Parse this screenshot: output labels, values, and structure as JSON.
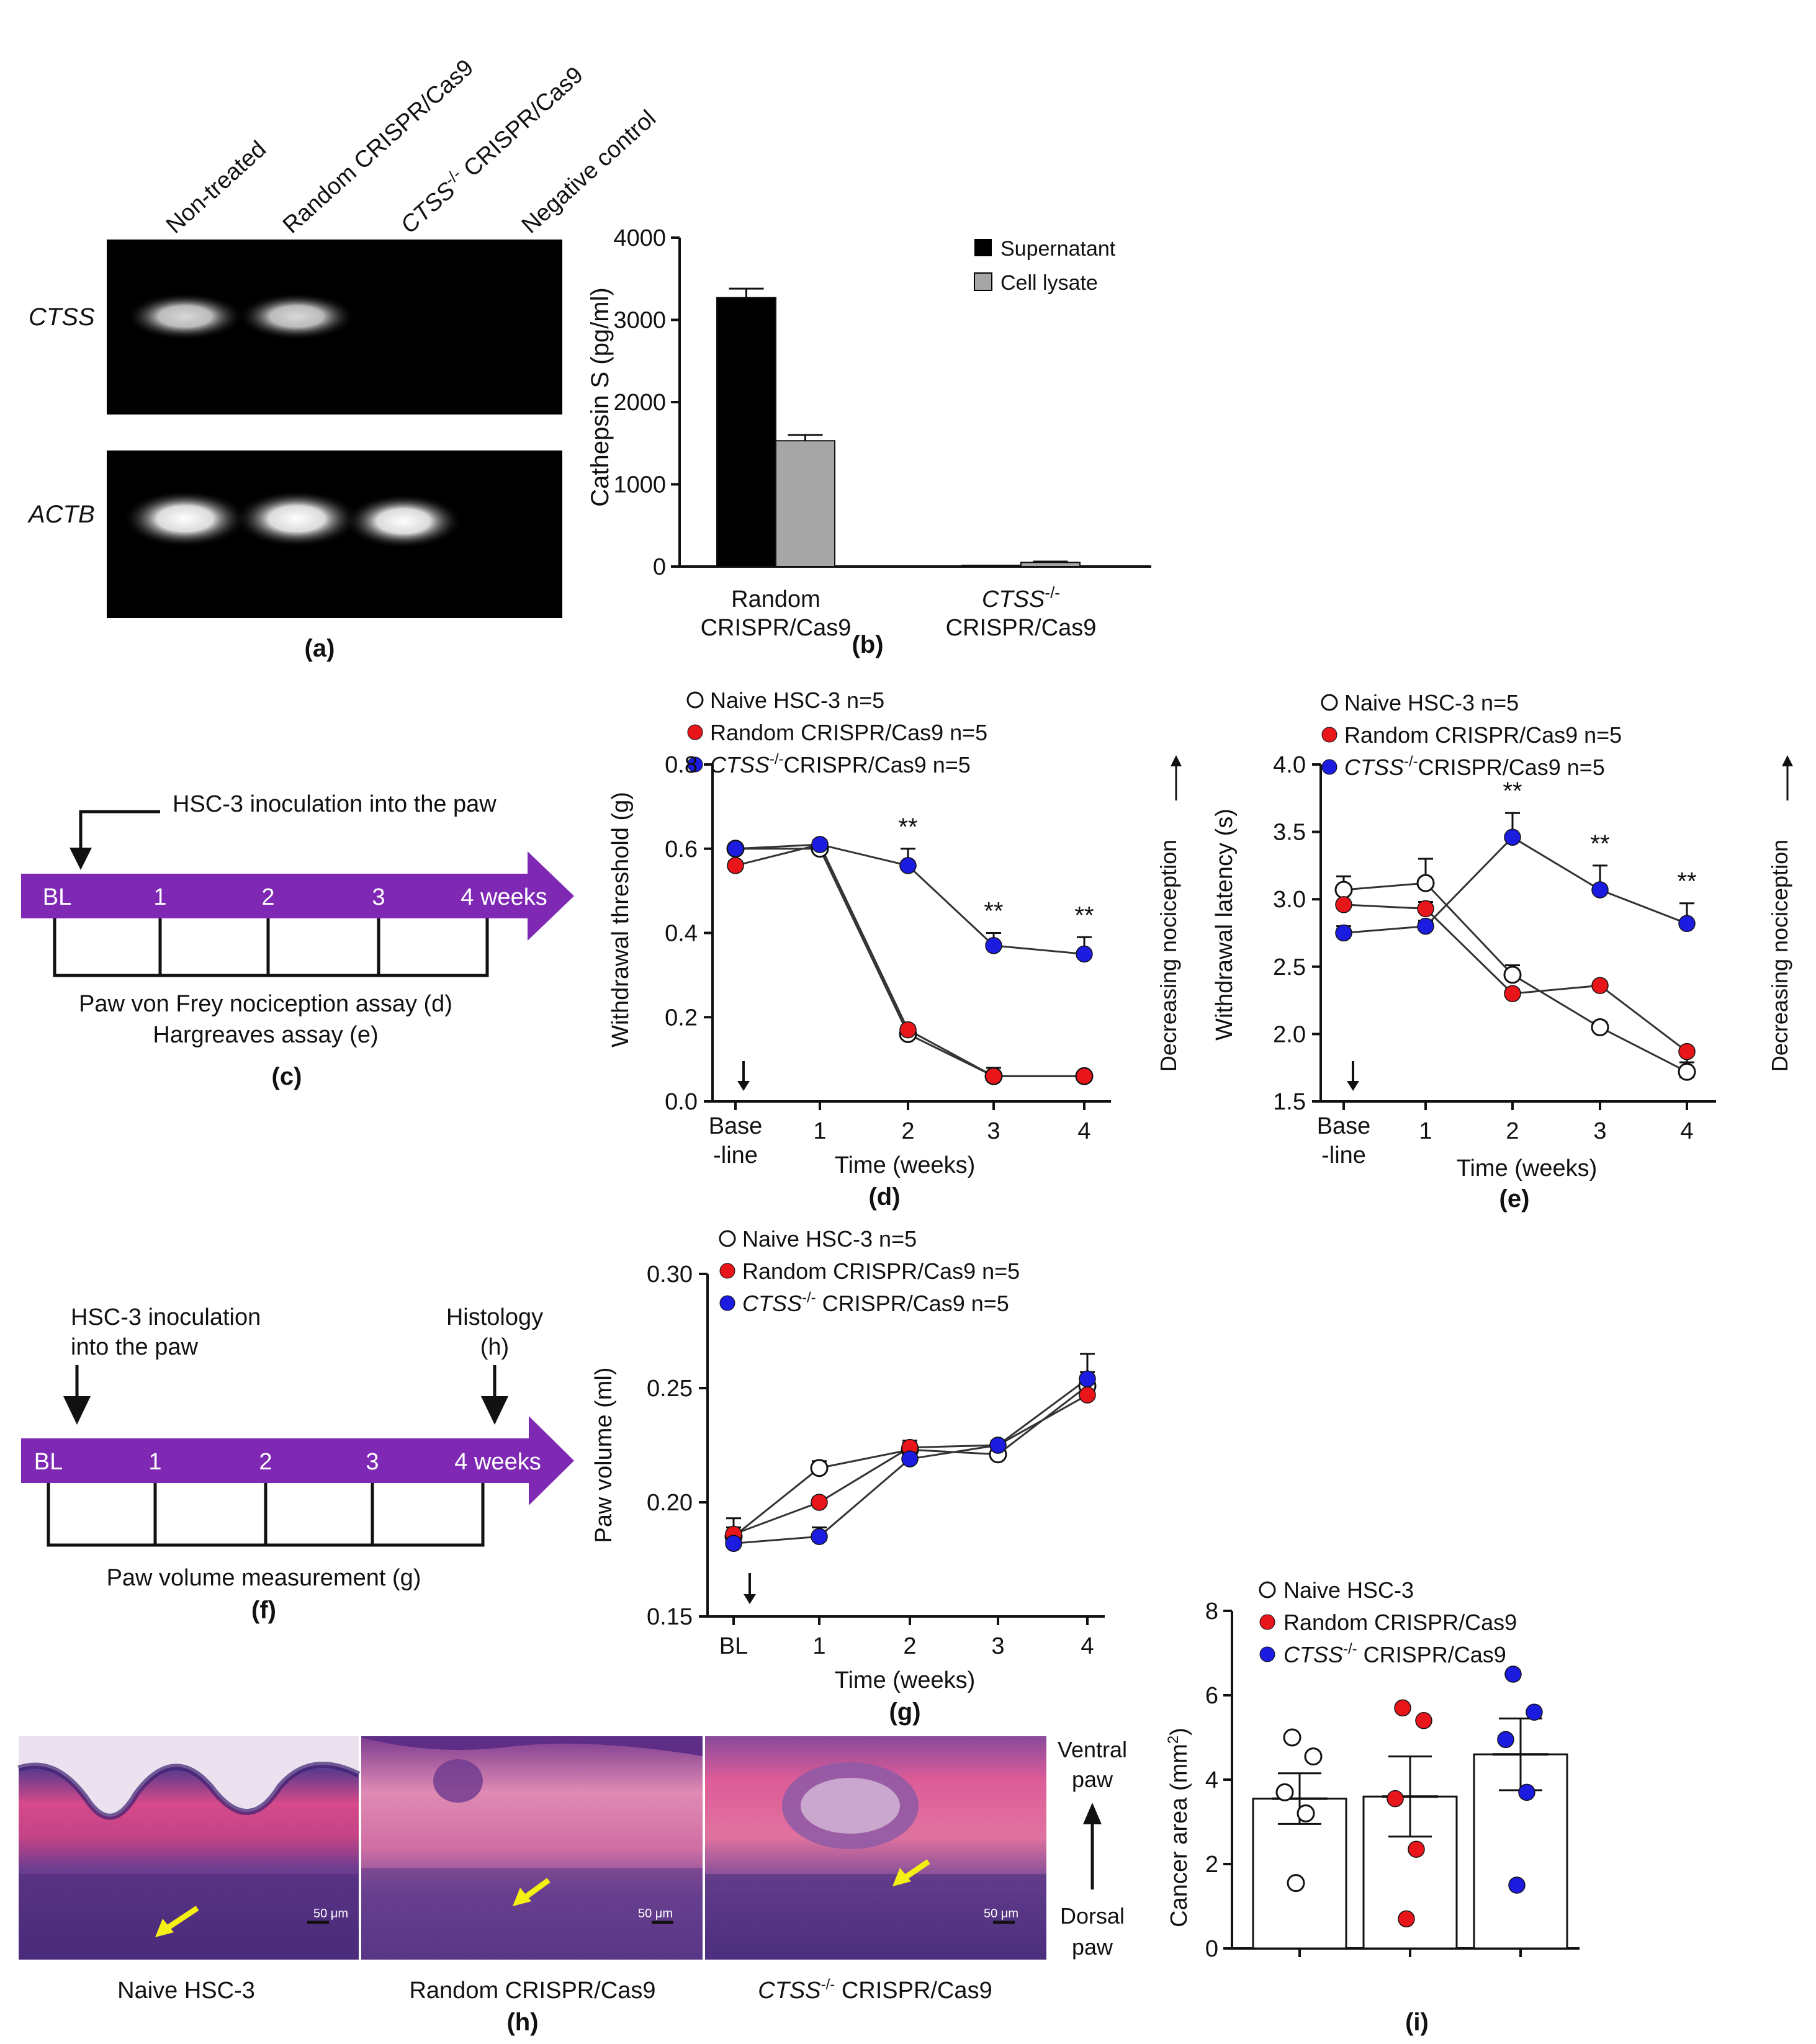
{
  "panel_a": {
    "label": "(a)",
    "lanes": [
      "Non-treated",
      "Random CRISPR/Cas9",
      "CTSS",
      "-/-",
      " CRISPR/Cas9",
      "Negative control"
    ],
    "genes": [
      "CTSS",
      "ACTB"
    ],
    "colors": {
      "gel": "#000000",
      "band": "#ffffff"
    }
  },
  "panel_b": {
    "label": "(b)",
    "ylabel": "Cathepsin S (pg/ml)",
    "legend": [
      "Supernatant",
      "Cell lysate"
    ],
    "group1": [
      "Random",
      "CRISPR/Cas9"
    ],
    "group2": [
      "CTSS",
      "-/-",
      "CRISPR/Cas9"
    ],
    "colors": {
      "supernatant": "#000000",
      "lysate": "#a6a6a6"
    }
  },
  "panel_c": {
    "label": "(c)",
    "inoculation": "HSC-3 inoculation into the paw",
    "timeline": [
      "BL",
      "1",
      "2",
      "3",
      "4 weeks"
    ],
    "assay1": "Paw von Frey nociception assay (d)",
    "assay2": "Hargreaves assay (e)",
    "colors": {
      "arrow": "#7f28b4"
    }
  },
  "panel_d": {
    "label": "(d)",
    "legend": [
      "Naive HSC-3 n=5",
      "Random CRISPR/Cas9 n=5",
      "CTSS",
      "-/-",
      "CRISPR/Cas9 n=5"
    ],
    "ylabel": "Withdrawal threshold (g)",
    "xlabel": "Time (weeks)",
    "xticks": [
      "Base",
      "-line",
      "1",
      "2",
      "3",
      "4"
    ],
    "stars": "**",
    "side": "Decreasing nociception"
  },
  "panel_e": {
    "label": "(e)",
    "legend": [
      "Naive HSC-3 n=5",
      "Random CRISPR/Cas9 n=5",
      "CTSS",
      "-/-",
      "CRISPR/Cas9 n=5"
    ],
    "ylabel": "Withdrawal latency (s)",
    "xlabel": "Time (weeks)",
    "xticks": [
      "Base",
      "-line",
      "1",
      "2",
      "3",
      "4"
    ],
    "stars": "**",
    "side": "Decreasing nociception"
  },
  "panel_f": {
    "label": "(f)",
    "inoculation": [
      "HSC-3 inoculation",
      "into the paw"
    ],
    "histology": [
      "Histology",
      "(h)"
    ],
    "timeline": [
      "BL",
      "1",
      "2",
      "3",
      "4 weeks"
    ],
    "measure": "Paw volume measurement (g)"
  },
  "panel_g": {
    "label": "(g)",
    "legend": [
      "Naive HSC-3 n=5",
      "Random CRISPR/Cas9 n=5",
      "CTSS",
      "-/-",
      " CRISPR/Cas9 n=5"
    ],
    "ylabel": "Paw volume (ml)",
    "xlabel": "Time (weeks)",
    "xticks": [
      "BL",
      "1",
      "2",
      "3",
      "4"
    ]
  },
  "panel_h": {
    "label": "(h)",
    "captions": [
      "Naive HSC-3",
      "Random CRISPR/Cas9",
      "CTSS",
      "-/-",
      " CRISPR/Cas9"
    ],
    "scale": "50 μm",
    "ventral": [
      "Ventral",
      "paw"
    ],
    "dorsal": [
      "Dorsal",
      "paw"
    ]
  },
  "panel_i": {
    "label": "(i)",
    "legend": [
      "Naive HSC-3",
      "Random CRISPR/Cas9",
      "CTSS",
      "-/-",
      " CRISPR/Cas9"
    ],
    "ylabel": "Cancer area (mm",
    "ylabel_sup": "2",
    "ylabel_end": ")"
  },
  "colors": {
    "naive": "#ffffff",
    "random": "#e8151b",
    "ctss": "#1c1ce0",
    "purple": "#7f28b4"
  },
  "chart_data": [
    {
      "id": "b",
      "type": "bar",
      "title": "",
      "categories": [
        "Random CRISPR/Cas9",
        "CTSS-/- CRISPR/Cas9"
      ],
      "series": [
        {
          "name": "Supernatant",
          "values": [
            3270,
            5
          ],
          "errors": [
            110,
            3
          ]
        },
        {
          "name": "Cell lysate",
          "values": [
            1530,
            50
          ],
          "errors": [
            70,
            10
          ]
        }
      ],
      "ylabel": "Cathepsin S (pg/ml)",
      "ylim": [
        0,
        4000
      ],
      "yticks": [
        0,
        1000,
        2000,
        3000,
        4000
      ]
    },
    {
      "id": "d",
      "type": "line",
      "title": "",
      "x": [
        "Base-line",
        "1",
        "2",
        "3",
        "4"
      ],
      "series": [
        {
          "name": "Naive HSC-3 n=5",
          "values": [
            0.6,
            0.6,
            0.16,
            0.06,
            0.06
          ],
          "errors": [
            0.01,
            0.01,
            0.01,
            0.02,
            0.01
          ]
        },
        {
          "name": "Random CRISPR/Cas9 n=5",
          "values": [
            0.56,
            0.61,
            0.17,
            0.06,
            0.06
          ],
          "errors": [
            0.01,
            0.01,
            0.01,
            0.01,
            0.01
          ]
        },
        {
          "name": "CTSS-/- CRISPR/Cas9 n=5",
          "values": [
            0.6,
            0.61,
            0.56,
            0.37,
            0.35
          ],
          "errors": [
            0.01,
            0.01,
            0.04,
            0.03,
            0.04
          ]
        }
      ],
      "significance": [
        {
          "x": "2",
          "label": "**"
        },
        {
          "x": "3",
          "label": "**"
        },
        {
          "x": "4",
          "label": "**"
        }
      ],
      "xlabel": "Time (weeks)",
      "ylabel": "Withdrawal threshold (g)",
      "ylim": [
        0,
        0.8
      ],
      "yticks": [
        0.0,
        0.2,
        0.4,
        0.6,
        0.8
      ]
    },
    {
      "id": "e",
      "type": "line",
      "title": "",
      "x": [
        "Base-line",
        "1",
        "2",
        "3",
        "4"
      ],
      "series": [
        {
          "name": "Naive HSC-3 n=5",
          "values": [
            3.07,
            3.12,
            2.44,
            2.05,
            1.72
          ],
          "errors": [
            0.1,
            0.18,
            0.07,
            0.04,
            0.04
          ]
        },
        {
          "name": "Random CRISPR/Cas9 n=5",
          "values": [
            2.96,
            2.93,
            2.3,
            2.36,
            1.87
          ],
          "errors": [
            0.09,
            0.05,
            0.03,
            0.03,
            0.08
          ]
        },
        {
          "name": "CTSS-/- CRISPR/Cas9 n=5",
          "values": [
            2.75,
            2.8,
            3.46,
            3.07,
            2.82
          ],
          "errors": [
            0.05,
            0.04,
            0.18,
            0.18,
            0.15
          ]
        }
      ],
      "significance": [
        {
          "x": "2",
          "label": "**"
        },
        {
          "x": "3",
          "label": "**"
        },
        {
          "x": "4",
          "label": "**"
        }
      ],
      "xlabel": "Time (weeks)",
      "ylabel": "Withdrawal latency (s)",
      "ylim": [
        1.5,
        4.0
      ],
      "yticks": [
        1.5,
        2.0,
        2.5,
        3.0,
        3.5,
        4.0
      ]
    },
    {
      "id": "g",
      "type": "line",
      "title": "",
      "x": [
        "BL",
        "1",
        "2",
        "3",
        "4"
      ],
      "series": [
        {
          "name": "Naive HSC-3 n=5",
          "values": [
            0.185,
            0.215,
            0.223,
            0.221,
            0.251
          ],
          "errors": [
            0.004,
            0.003,
            0.003,
            0.002,
            0.006
          ]
        },
        {
          "name": "Random CRISPR/Cas9 n=5",
          "values": [
            0.186,
            0.2,
            0.224,
            0.225,
            0.247
          ],
          "errors": [
            0.007,
            0.002,
            0.003,
            0.002,
            0.003
          ]
        },
        {
          "name": "CTSS-/- CRISPR/Cas9 n=5",
          "values": [
            0.182,
            0.185,
            0.219,
            0.225,
            0.254
          ],
          "errors": [
            0.005,
            0.004,
            0.003,
            0.002,
            0.011
          ]
        }
      ],
      "xlabel": "Time (weeks)",
      "ylabel": "Paw volume (ml)",
      "ylim": [
        0.15,
        0.3
      ],
      "yticks": [
        0.15,
        0.2,
        0.25,
        0.3
      ]
    },
    {
      "id": "i",
      "type": "scatter",
      "title": "",
      "categories": [
        "Naive HSC-3",
        "Random CRISPR/Cas9",
        "CTSS-/- CRISPR/Cas9"
      ],
      "means": [
        3.55,
        3.6,
        4.6
      ],
      "sem": [
        0.6,
        0.95,
        0.85
      ],
      "points": [
        [
          5.0,
          4.55,
          3.7,
          3.2,
          1.55
        ],
        [
          5.7,
          5.4,
          3.55,
          2.35,
          0.7
        ],
        [
          6.5,
          5.6,
          4.95,
          3.7,
          1.5
        ]
      ],
      "ylabel": "Cancer area (mm2)",
      "ylim": [
        0,
        8
      ],
      "yticks": [
        0,
        2,
        4,
        6,
        8
      ]
    }
  ]
}
